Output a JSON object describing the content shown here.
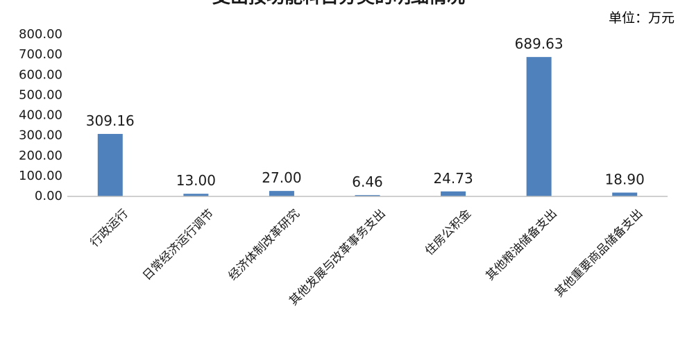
{
  "chart_data": {
    "type": "bar",
    "title": "支出按功能科目分类的明细情况",
    "unit": "单位：万元",
    "categories": [
      "行政运行",
      "日常经济运行调节",
      "经济体制改革研究",
      "其他发展与改革事务支出",
      "住房公积金",
      "其他粮油储备支出",
      "其他重要商品储备支出"
    ],
    "values": [
      309.16,
      13.0,
      27.0,
      6.46,
      24.73,
      689.63,
      18.9
    ],
    "data_labels": [
      "309.16",
      "13.00",
      "27.00",
      "6.46",
      "24.73",
      "689.63",
      "18.90"
    ],
    "y_ticks": [
      "0.00",
      "100.00",
      "200.00",
      "300.00",
      "400.00",
      "500.00",
      "600.00",
      "700.00",
      "800.00"
    ],
    "ylim": [
      0,
      800
    ],
    "grid": false,
    "legend": "none",
    "bar_color": "#4f81bd",
    "axis_color": "#bfbfbf"
  }
}
